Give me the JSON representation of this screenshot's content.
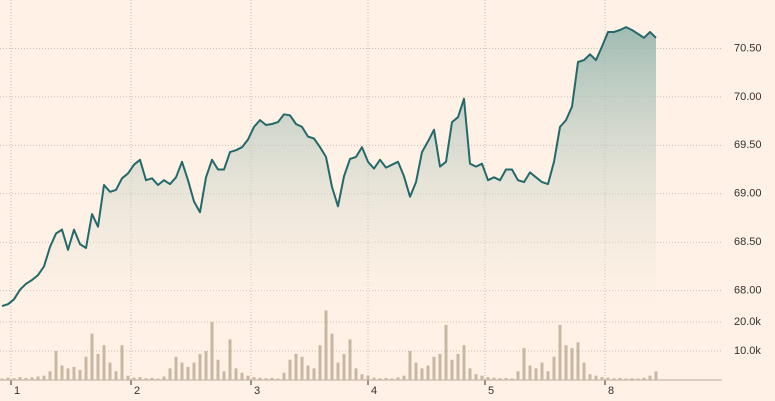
{
  "chart_data": [
    {
      "type": "area",
      "color": "#23696b",
      "values": [
        67.84,
        67.86,
        67.91,
        68.01,
        68.07,
        68.11,
        68.16,
        68.25,
        68.45,
        68.59,
        68.63,
        68.42,
        68.63,
        68.48,
        68.44,
        68.79,
        68.66,
        69.09,
        69.02,
        69.04,
        69.16,
        69.21,
        69.3,
        69.35,
        69.14,
        69.16,
        69.09,
        69.14,
        69.1,
        69.17,
        69.33,
        69.14,
        68.92,
        68.81,
        69.17,
        69.35,
        69.25,
        69.25,
        69.43,
        69.45,
        69.48,
        69.56,
        69.69,
        69.76,
        69.71,
        69.72,
        69.74,
        69.82,
        69.81,
        69.72,
        69.69,
        69.59,
        69.57,
        69.48,
        69.38,
        69.07,
        68.87,
        69.18,
        69.36,
        69.38,
        69.48,
        69.33,
        69.26,
        69.35,
        69.27,
        69.3,
        69.33,
        69.18,
        68.97,
        69.12,
        69.43,
        69.54,
        69.66,
        69.28,
        69.33,
        69.74,
        69.79,
        69.98,
        69.31,
        69.28,
        69.31,
        69.14,
        69.17,
        69.14,
        69.25,
        69.25,
        69.14,
        69.12,
        69.22,
        69.17,
        69.12,
        69.1,
        69.33,
        69.69,
        69.76,
        69.9,
        70.36,
        70.38,
        70.44,
        70.38,
        70.52,
        70.67,
        70.67,
        70.69,
        70.72,
        70.69,
        70.65,
        70.61,
        70.67,
        70.61
      ],
      "ylim": [
        67.8,
        71.0
      ],
      "yticks": [
        {
          "value": 68,
          "label": "68.00"
        },
        {
          "value": 68.5,
          "label": "68.50"
        },
        {
          "value": 69,
          "label": "69.00"
        },
        {
          "value": 69.5,
          "label": "69.50"
        },
        {
          "value": 70,
          "label": "70.00"
        },
        {
          "value": 70.5,
          "label": "70.50"
        }
      ],
      "xlim": [
        0,
        120
      ],
      "xticks": [
        {
          "value": 1.5,
          "label": "1"
        },
        {
          "value": 21.5,
          "label": "2"
        },
        {
          "value": 41.5,
          "label": "3"
        },
        {
          "value": 61,
          "label": "4"
        },
        {
          "value": 80.5,
          "label": "5"
        },
        {
          "value": 100.5,
          "label": "8"
        }
      ],
      "grid": true
    },
    {
      "type": "bar",
      "color": "#c8b8a2",
      "values": [
        500,
        800,
        600,
        1000,
        700,
        900,
        1200,
        1500,
        3000,
        10000,
        5000,
        4000,
        4500,
        3500,
        8000,
        16000,
        9000,
        12000,
        6000,
        3000,
        12000,
        1500,
        800,
        1000,
        600,
        700,
        500,
        1200,
        4000,
        8000,
        6000,
        4500,
        6000,
        9000,
        10000,
        20000,
        7000,
        3000,
        14000,
        4000,
        2500,
        1500,
        1000,
        800,
        600,
        700,
        500,
        2500,
        7000,
        9000,
        8000,
        5000,
        4000,
        12000,
        24000,
        16000,
        6000,
        9000,
        14000,
        4000,
        2000,
        1500,
        800,
        600,
        700,
        500,
        900,
        1500,
        10000,
        6000,
        4000,
        5000,
        8000,
        9000,
        19000,
        7000,
        9000,
        12000,
        4000,
        2000,
        1500,
        1000,
        800,
        600,
        700,
        500,
        3000,
        11000,
        5000,
        4000,
        6000,
        3000,
        8000,
        19000,
        12000,
        11000,
        13000,
        6000,
        2000,
        1500,
        1000,
        800,
        600,
        700,
        500,
        600,
        500,
        800,
        1500,
        3000
      ],
      "ylim": [
        0,
        25000
      ],
      "yticks": [
        {
          "value": 10000,
          "label": "10.0k"
        },
        {
          "value": 20000,
          "label": "20.0k"
        }
      ],
      "grid": true
    }
  ]
}
